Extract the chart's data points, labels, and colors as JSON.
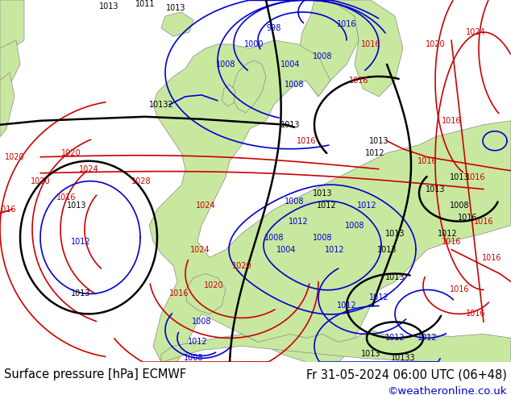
{
  "title_left": "Surface pressure [hPa] ECMWF",
  "title_right": "Fr 31-05-2024 06:00 UTC (06+48)",
  "watermark": "©weatheronline.co.uk",
  "watermark_color": "#0000cc",
  "footer_bg": "#c8c8c8",
  "footer_text_color": "#000000",
  "footer_font_size": 10.5,
  "ocean_color": "#e8e8e8",
  "land_color": "#c8e8a0",
  "border_color": "#888888",
  "figsize": [
    6.34,
    4.9
  ],
  "dpi": 100,
  "red": "#cc0000",
  "blue": "#0000cc",
  "black": "#000000",
  "label_fontsize": 7.0,
  "contour_lw": 1.2,
  "black_lw": 1.8
}
